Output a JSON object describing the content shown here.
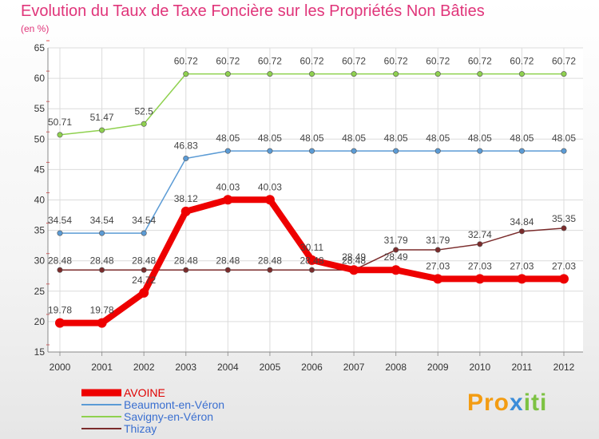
{
  "header": {
    "title": "Evolution du Taux de Taxe Foncière sur les Propriétés Non Bâties",
    "subtitle": "(en %)"
  },
  "logo": {
    "text": "Proxiti",
    "parts": [
      "Pro",
      "x",
      "iti"
    ]
  },
  "chart_data": {
    "type": "line",
    "title": "Evolution du Taux de Taxe Foncière sur les Propriétés Non Bâties",
    "ylabel": "(en %)",
    "xlabel": "",
    "x": [
      "2000",
      "2001",
      "2002",
      "2003",
      "2004",
      "2005",
      "2006",
      "2007",
      "2008",
      "2009",
      "2010",
      "2011",
      "2012"
    ],
    "ylim": [
      15,
      65
    ],
    "yticks": [
      15,
      20,
      25,
      30,
      35,
      40,
      45,
      50,
      55,
      60,
      65
    ],
    "grid": true,
    "legend": "bottom-left",
    "series": [
      {
        "name": "AVOINE",
        "color": "#ee0000",
        "values": [
          19.78,
          19.78,
          24.72,
          38.12,
          40.03,
          40.03,
          30.11,
          28.49,
          28.49,
          27.03,
          27.03,
          27.03,
          27.03
        ],
        "labels": [
          "19.78",
          "19.78",
          "24.72",
          "38.12",
          "40.03",
          "40.03",
          "30.11",
          "28.49",
          "28.49",
          "27.03",
          "27.03",
          "27.03",
          "27.03"
        ]
      },
      {
        "name": "Beaumont-en-Véron",
        "color": "#5b9bd5",
        "values": [
          34.54,
          34.54,
          34.54,
          46.83,
          48.05,
          48.05,
          48.05,
          48.05,
          48.05,
          48.05,
          48.05,
          48.05,
          48.05
        ],
        "labels": [
          "34.54",
          "34.54",
          "34.54",
          "46.83",
          "48.05",
          "48.05",
          "48.05",
          "48.05",
          "48.05",
          "48.05",
          "48.05",
          "48.05",
          "48.05"
        ]
      },
      {
        "name": "Savigny-en-Véron",
        "color": "#8fd14f",
        "values": [
          50.71,
          51.47,
          52.5,
          60.72,
          60.72,
          60.72,
          60.72,
          60.72,
          60.72,
          60.72,
          60.72,
          60.72,
          60.72
        ],
        "labels": [
          "50.71",
          "51.47",
          "52.5",
          "60.72",
          "60.72",
          "60.72",
          "60.72",
          "60.72",
          "60.72",
          "60.72",
          "60.72",
          "60.72",
          "60.72"
        ]
      },
      {
        "name": "Thizay",
        "color": "#7b2c2c",
        "values": [
          28.48,
          28.48,
          28.48,
          28.48,
          28.48,
          28.48,
          28.48,
          28.48,
          31.79,
          31.79,
          32.74,
          34.84,
          35.35
        ],
        "labels": [
          "28.48",
          "28.48",
          "28.48",
          "28.48",
          "28.48",
          "28.48",
          "28.48",
          "28.48",
          "31.79",
          "31.79",
          "32.74",
          "34.84",
          "35.35"
        ]
      }
    ]
  }
}
